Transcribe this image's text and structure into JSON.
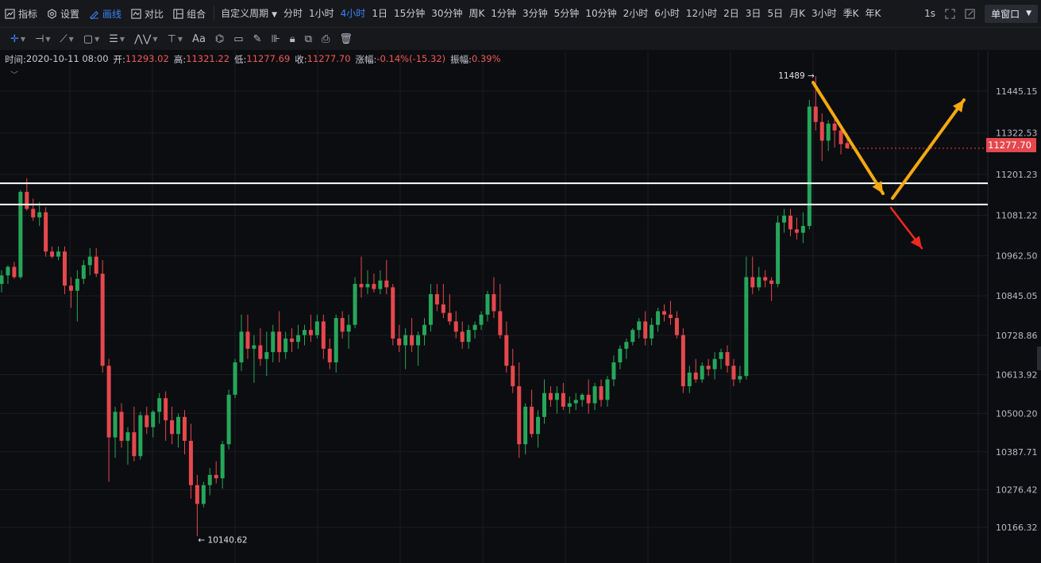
{
  "toolbar": {
    "items": [
      {
        "label": "指标",
        "icon": "indicator-icon"
      },
      {
        "label": "设置",
        "icon": "settings-icon"
      },
      {
        "label": "画线",
        "icon": "draw-line-icon",
        "active": true
      },
      {
        "label": "对比",
        "icon": "compare-icon"
      },
      {
        "label": "组合",
        "icon": "layout-icon"
      }
    ],
    "custom_period_label": "自定义周期",
    "periods": [
      "分时",
      "1小时",
      "4小时",
      "1日",
      "15分钟",
      "30分钟",
      "周K",
      "1分钟",
      "3分钟",
      "5分钟",
      "10分钟",
      "2小时",
      "6小时",
      "12小时",
      "2日",
      "3日",
      "5日",
      "月K",
      "3小时",
      "季K",
      "年K"
    ],
    "active_period": "4小时",
    "refresh_label": "1s",
    "window_mode_label": "单窗口"
  },
  "drawing_tools": [
    "crosshair-icon",
    "horizontal-line-icon",
    "trend-line-icon",
    "rectangle-icon",
    "parallel-lines-icon",
    "pattern-icon",
    "measure-icon",
    "text-icon",
    "fib-icon",
    "ruler-icon",
    "brush-icon",
    "magnet-icon",
    "lock-icon",
    "copy-icon",
    "screenshot-icon",
    "trash-icon"
  ],
  "info": {
    "time_label": "时间:",
    "time": "2020-10-11 08:00",
    "open_label": "开:",
    "open": "11293.02",
    "high_label": "高:",
    "high": "11321.22",
    "low_label": "低:",
    "low": "11277.69",
    "close_label": "收:",
    "close": "11277.70",
    "change_label": "涨幅:",
    "change": "-0.14%(-15.32)",
    "amp_label": "振幅:",
    "amp": "0.39%"
  },
  "colors": {
    "up": "#26a65b",
    "down": "#e5484d",
    "arrow_orange": "#f5a910",
    "arrow_red": "#ee2a1f",
    "line_white": "#ffffff",
    "accent": "#3b82f6"
  },
  "chart_data": {
    "type": "candlestick",
    "y_axis_labels": [
      "11445.15",
      "11322.53",
      "11201.23",
      "11081.22",
      "10962.50",
      "10845.05",
      "10728.86",
      "10613.92",
      "10500.20",
      "10387.71",
      "10276.42",
      "10166.32"
    ],
    "current_price": "11277.70",
    "high_marker": "11489",
    "low_marker": "10140.62",
    "horizontal_levels": [
      11175,
      11113
    ],
    "candles": [
      {
        "o": 10880,
        "h": 10920,
        "l": 10855,
        "c": 10905
      },
      {
        "o": 10905,
        "h": 10935,
        "l": 10880,
        "c": 10930
      },
      {
        "o": 10930,
        "h": 10945,
        "l": 10895,
        "c": 10900
      },
      {
        "o": 10900,
        "h": 11155,
        "l": 10895,
        "c": 11150
      },
      {
        "o": 11150,
        "h": 11190,
        "l": 11095,
        "c": 11100
      },
      {
        "o": 11100,
        "h": 11130,
        "l": 11065,
        "c": 11075
      },
      {
        "o": 11075,
        "h": 11120,
        "l": 11050,
        "c": 11090
      },
      {
        "o": 11090,
        "h": 11105,
        "l": 10960,
        "c": 10975
      },
      {
        "o": 10975,
        "h": 10990,
        "l": 10955,
        "c": 10960
      },
      {
        "o": 10960,
        "h": 10990,
        "l": 10950,
        "c": 10975
      },
      {
        "o": 10975,
        "h": 10990,
        "l": 10850,
        "c": 10875
      },
      {
        "o": 10875,
        "h": 10900,
        "l": 10810,
        "c": 10860
      },
      {
        "o": 10860,
        "h": 10920,
        "l": 10770,
        "c": 10895
      },
      {
        "o": 10895,
        "h": 10950,
        "l": 10880,
        "c": 10935
      },
      {
        "o": 10935,
        "h": 10985,
        "l": 10905,
        "c": 10960
      },
      {
        "o": 10960,
        "h": 10985,
        "l": 10900,
        "c": 10910
      },
      {
        "o": 10910,
        "h": 10950,
        "l": 10620,
        "c": 10640
      },
      {
        "o": 10640,
        "h": 10660,
        "l": 10300,
        "c": 10430
      },
      {
        "o": 10430,
        "h": 10520,
        "l": 10370,
        "c": 10505
      },
      {
        "o": 10505,
        "h": 10530,
        "l": 10400,
        "c": 10420
      },
      {
        "o": 10420,
        "h": 10460,
        "l": 10350,
        "c": 10445
      },
      {
        "o": 10445,
        "h": 10520,
        "l": 10360,
        "c": 10375
      },
      {
        "o": 10375,
        "h": 10505,
        "l": 10365,
        "c": 10495
      },
      {
        "o": 10495,
        "h": 10520,
        "l": 10440,
        "c": 10460
      },
      {
        "o": 10460,
        "h": 10510,
        "l": 10430,
        "c": 10505
      },
      {
        "o": 10505,
        "h": 10560,
        "l": 10470,
        "c": 10545
      },
      {
        "o": 10545,
        "h": 10565,
        "l": 10420,
        "c": 10480
      },
      {
        "o": 10480,
        "h": 10520,
        "l": 10410,
        "c": 10440
      },
      {
        "o": 10440,
        "h": 10500,
        "l": 10400,
        "c": 10490
      },
      {
        "o": 10490,
        "h": 10510,
        "l": 10380,
        "c": 10420
      },
      {
        "o": 10420,
        "h": 10470,
        "l": 10250,
        "c": 10290
      },
      {
        "o": 10290,
        "h": 10320,
        "l": 10140,
        "c": 10235
      },
      {
        "o": 10235,
        "h": 10300,
        "l": 10225,
        "c": 10290
      },
      {
        "o": 10290,
        "h": 10340,
        "l": 10260,
        "c": 10320
      },
      {
        "o": 10320,
        "h": 10360,
        "l": 10295,
        "c": 10310
      },
      {
        "o": 10310,
        "h": 10420,
        "l": 10280,
        "c": 10410
      },
      {
        "o": 10410,
        "h": 10570,
        "l": 10395,
        "c": 10555
      },
      {
        "o": 10555,
        "h": 10660,
        "l": 10545,
        "c": 10650
      },
      {
        "o": 10650,
        "h": 10790,
        "l": 10625,
        "c": 10740
      },
      {
        "o": 10740,
        "h": 10790,
        "l": 10660,
        "c": 10690
      },
      {
        "o": 10690,
        "h": 10730,
        "l": 10590,
        "c": 10700
      },
      {
        "o": 10700,
        "h": 10750,
        "l": 10640,
        "c": 10660
      },
      {
        "o": 10660,
        "h": 10740,
        "l": 10610,
        "c": 10680
      },
      {
        "o": 10680,
        "h": 10760,
        "l": 10650,
        "c": 10740
      },
      {
        "o": 10740,
        "h": 10800,
        "l": 10650,
        "c": 10680
      },
      {
        "o": 10680,
        "h": 10740,
        "l": 10660,
        "c": 10720
      },
      {
        "o": 10720,
        "h": 10750,
        "l": 10680,
        "c": 10710
      },
      {
        "o": 10710,
        "h": 10760,
        "l": 10690,
        "c": 10730
      },
      {
        "o": 10730,
        "h": 10760,
        "l": 10700,
        "c": 10745
      },
      {
        "o": 10745,
        "h": 10790,
        "l": 10710,
        "c": 10730
      },
      {
        "o": 10730,
        "h": 10790,
        "l": 10720,
        "c": 10770
      },
      {
        "o": 10770,
        "h": 10790,
        "l": 10660,
        "c": 10690
      },
      {
        "o": 10690,
        "h": 10720,
        "l": 10630,
        "c": 10650
      },
      {
        "o": 10650,
        "h": 10790,
        "l": 10620,
        "c": 10780
      },
      {
        "o": 10780,
        "h": 10800,
        "l": 10720,
        "c": 10740
      },
      {
        "o": 10740,
        "h": 10790,
        "l": 10690,
        "c": 10760
      },
      {
        "o": 10760,
        "h": 10900,
        "l": 10750,
        "c": 10880
      },
      {
        "o": 10880,
        "h": 10960,
        "l": 10840,
        "c": 10870
      },
      {
        "o": 10870,
        "h": 10920,
        "l": 10850,
        "c": 10880
      },
      {
        "o": 10880,
        "h": 10910,
        "l": 10855,
        "c": 10865
      },
      {
        "o": 10865,
        "h": 10920,
        "l": 10850,
        "c": 10890
      },
      {
        "o": 10890,
        "h": 10950,
        "l": 10850,
        "c": 10870
      },
      {
        "o": 10870,
        "h": 10880,
        "l": 10700,
        "c": 10720
      },
      {
        "o": 10720,
        "h": 10760,
        "l": 10680,
        "c": 10700
      },
      {
        "o": 10700,
        "h": 10750,
        "l": 10630,
        "c": 10730
      },
      {
        "o": 10730,
        "h": 10780,
        "l": 10680,
        "c": 10700
      },
      {
        "o": 10700,
        "h": 10740,
        "l": 10640,
        "c": 10730
      },
      {
        "o": 10730,
        "h": 10780,
        "l": 10700,
        "c": 10760
      },
      {
        "o": 10760,
        "h": 10880,
        "l": 10740,
        "c": 10850
      },
      {
        "o": 10850,
        "h": 10880,
        "l": 10800,
        "c": 10820
      },
      {
        "o": 10820,
        "h": 10880,
        "l": 10780,
        "c": 10795
      },
      {
        "o": 10795,
        "h": 10850,
        "l": 10760,
        "c": 10770
      },
      {
        "o": 10770,
        "h": 10800,
        "l": 10720,
        "c": 10740
      },
      {
        "o": 10740,
        "h": 10770,
        "l": 10690,
        "c": 10710
      },
      {
        "o": 10710,
        "h": 10760,
        "l": 10690,
        "c": 10745
      },
      {
        "o": 10745,
        "h": 10770,
        "l": 10720,
        "c": 10760
      },
      {
        "o": 10760,
        "h": 10800,
        "l": 10745,
        "c": 10790
      },
      {
        "o": 10790,
        "h": 10860,
        "l": 10770,
        "c": 10850
      },
      {
        "o": 10850,
        "h": 10900,
        "l": 10780,
        "c": 10800
      },
      {
        "o": 10800,
        "h": 10880,
        "l": 10720,
        "c": 10730
      },
      {
        "o": 10730,
        "h": 10770,
        "l": 10620,
        "c": 10640
      },
      {
        "o": 10640,
        "h": 10690,
        "l": 10560,
        "c": 10580
      },
      {
        "o": 10580,
        "h": 10650,
        "l": 10370,
        "c": 10410
      },
      {
        "o": 10410,
        "h": 10530,
        "l": 10380,
        "c": 10520
      },
      {
        "o": 10520,
        "h": 10570,
        "l": 10430,
        "c": 10440
      },
      {
        "o": 10440,
        "h": 10510,
        "l": 10400,
        "c": 10490
      },
      {
        "o": 10490,
        "h": 10600,
        "l": 10470,
        "c": 10560
      },
      {
        "o": 10560,
        "h": 10580,
        "l": 10520,
        "c": 10540
      },
      {
        "o": 10540,
        "h": 10580,
        "l": 10500,
        "c": 10560
      },
      {
        "o": 10560,
        "h": 10590,
        "l": 10510,
        "c": 10520
      },
      {
        "o": 10520,
        "h": 10550,
        "l": 10500,
        "c": 10530
      },
      {
        "o": 10530,
        "h": 10560,
        "l": 10510,
        "c": 10540
      },
      {
        "o": 10540,
        "h": 10560,
        "l": 10520,
        "c": 10555
      },
      {
        "o": 10555,
        "h": 10600,
        "l": 10500,
        "c": 10530
      },
      {
        "o": 10530,
        "h": 10590,
        "l": 10510,
        "c": 10580
      },
      {
        "o": 10580,
        "h": 10600,
        "l": 10520,
        "c": 10540
      },
      {
        "o": 10540,
        "h": 10610,
        "l": 10520,
        "c": 10600
      },
      {
        "o": 10600,
        "h": 10670,
        "l": 10580,
        "c": 10650
      },
      {
        "o": 10650,
        "h": 10700,
        "l": 10630,
        "c": 10690
      },
      {
        "o": 10690,
        "h": 10720,
        "l": 10660,
        "c": 10710
      },
      {
        "o": 10710,
        "h": 10750,
        "l": 10700,
        "c": 10745
      },
      {
        "o": 10745,
        "h": 10780,
        "l": 10720,
        "c": 10770
      },
      {
        "o": 10770,
        "h": 10800,
        "l": 10700,
        "c": 10720
      },
      {
        "o": 10720,
        "h": 10780,
        "l": 10700,
        "c": 10760
      },
      {
        "o": 10760,
        "h": 10810,
        "l": 10740,
        "c": 10800
      },
      {
        "o": 10800,
        "h": 10820,
        "l": 10770,
        "c": 10790
      },
      {
        "o": 10790,
        "h": 10830,
        "l": 10760,
        "c": 10780
      },
      {
        "o": 10780,
        "h": 10800,
        "l": 10720,
        "c": 10730
      },
      {
        "o": 10730,
        "h": 10750,
        "l": 10560,
        "c": 10580
      },
      {
        "o": 10580,
        "h": 10640,
        "l": 10560,
        "c": 10620
      },
      {
        "o": 10620,
        "h": 10660,
        "l": 10590,
        "c": 10600
      },
      {
        "o": 10600,
        "h": 10650,
        "l": 10590,
        "c": 10640
      },
      {
        "o": 10640,
        "h": 10660,
        "l": 10610,
        "c": 10630
      },
      {
        "o": 10630,
        "h": 10680,
        "l": 10600,
        "c": 10660
      },
      {
        "o": 10660,
        "h": 10690,
        "l": 10630,
        "c": 10680
      },
      {
        "o": 10680,
        "h": 10700,
        "l": 10620,
        "c": 10640
      },
      {
        "o": 10640,
        "h": 10660,
        "l": 10580,
        "c": 10600
      },
      {
        "o": 10600,
        "h": 10640,
        "l": 10590,
        "c": 10610
      },
      {
        "o": 10610,
        "h": 10960,
        "l": 10600,
        "c": 10900
      },
      {
        "o": 10900,
        "h": 10960,
        "l": 10850,
        "c": 10870
      },
      {
        "o": 10870,
        "h": 10930,
        "l": 10860,
        "c": 10900
      },
      {
        "o": 10900,
        "h": 10920,
        "l": 10870,
        "c": 10890
      },
      {
        "o": 10890,
        "h": 10900,
        "l": 10830,
        "c": 10880
      },
      {
        "o": 10880,
        "h": 11080,
        "l": 10870,
        "c": 11060
      },
      {
        "o": 11060,
        "h": 11100,
        "l": 11030,
        "c": 11080
      },
      {
        "o": 11080,
        "h": 11100,
        "l": 11020,
        "c": 11040
      },
      {
        "o": 11040,
        "h": 11075,
        "l": 11010,
        "c": 11030
      },
      {
        "o": 11030,
        "h": 11090,
        "l": 11000,
        "c": 11050
      },
      {
        "o": 11050,
        "h": 11420,
        "l": 11040,
        "c": 11400
      },
      {
        "o": 11400,
        "h": 11489,
        "l": 11330,
        "c": 11355
      },
      {
        "o": 11355,
        "h": 11380,
        "l": 11240,
        "c": 11300
      },
      {
        "o": 11300,
        "h": 11360,
        "l": 11270,
        "c": 11350
      },
      {
        "o": 11350,
        "h": 11375,
        "l": 11280,
        "c": 11330
      },
      {
        "o": 11330,
        "h": 11345,
        "l": 11260,
        "c": 11290
      },
      {
        "o": 11293,
        "h": 11321,
        "l": 11277,
        "c": 11278
      }
    ]
  }
}
